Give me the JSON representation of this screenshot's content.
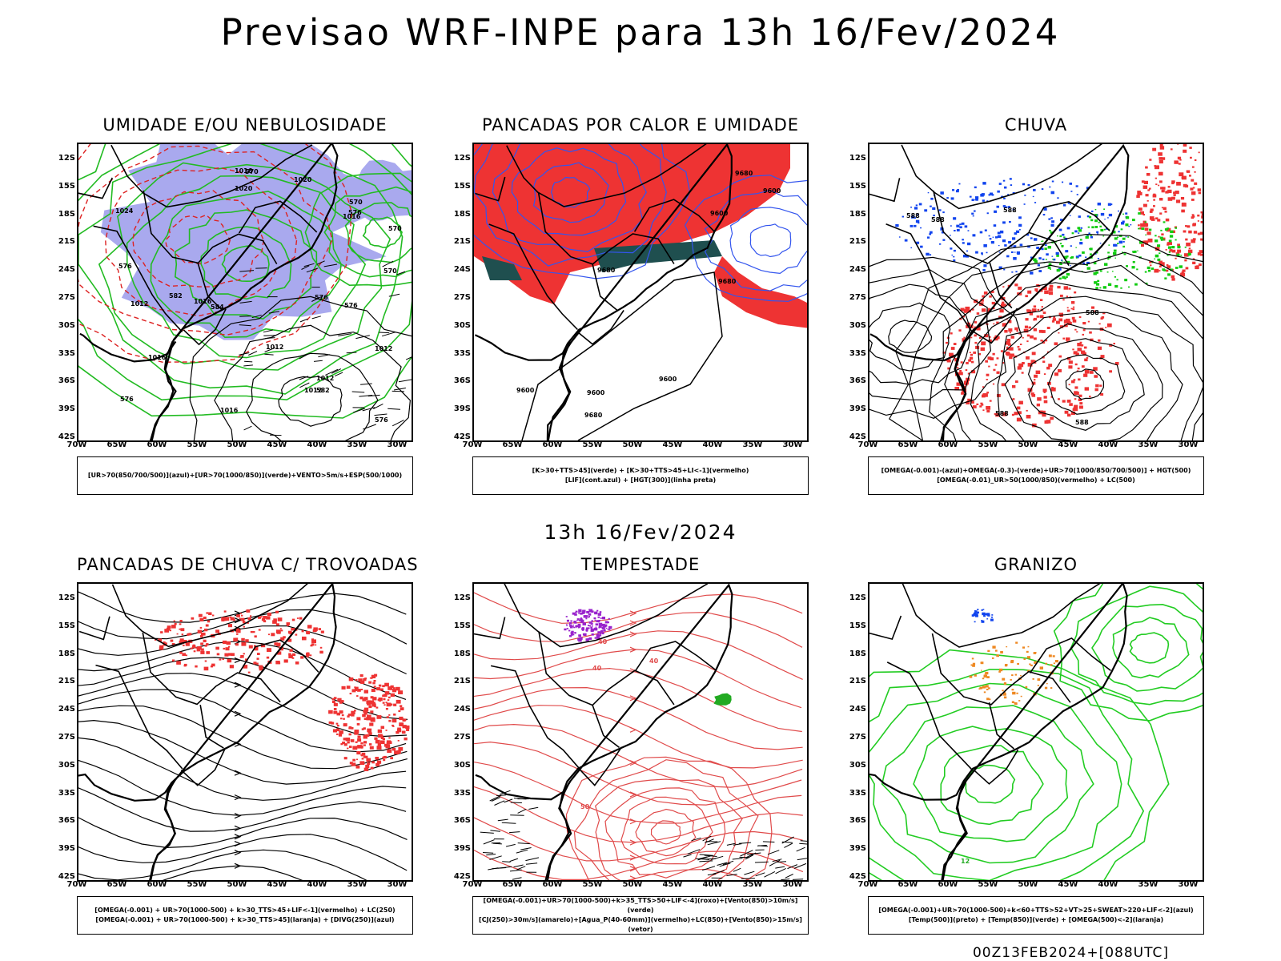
{
  "title": "Previsao WRF-INPE  para 13h 16/Fev/2024",
  "subtitle": "13h 16/Fev/2024",
  "footer": "00Z13FEB2024+[088UTC]",
  "lat_labels": [
    "12S",
    "15S",
    "18S",
    "21S",
    "24S",
    "27S",
    "30S",
    "33S",
    "36S",
    "39S",
    "42S"
  ],
  "lon_labels": [
    "70W",
    "65W",
    "60W",
    "55W",
    "50W",
    "45W",
    "40W",
    "35W",
    "30W"
  ],
  "colors": {
    "humid_mid": "#a9a9ee",
    "humid_low": "#22bb22",
    "heat_showers": "#ee3333",
    "dark_green": "#1f4f4f",
    "lifted_index": "#3355ee",
    "rain_green": "#11cc11",
    "rain_blue": "#1144ee",
    "storm_purple": "#9922cc",
    "hail_orange": "#ee8822"
  },
  "panels": [
    {
      "id": "umidade",
      "title": "UMIDADE E/OU NEBULOSIDADE",
      "legend": [
        "[UR>70(850/700/500)](azul)+[UR>70(1000/850)](verde)+VENTO>5m/s+ESP(500/1000)"
      ],
      "contour_labels": [
        "1012",
        "1012",
        "1012",
        "1012",
        "1016",
        "1016",
        "1016",
        "1016",
        "1020",
        "1020",
        "1024",
        "1012",
        "1016",
        "576",
        "576",
        "576",
        "576",
        "576",
        "576",
        "570",
        "570",
        "570",
        "570",
        "582",
        "582",
        "584"
      ]
    },
    {
      "id": "pancadas",
      "title": "PANCADAS POR CALOR E UMIDADE",
      "legend": [
        "[K>30+TTS>45](verde) + [K>30+TTS>45+LI<-1](vermelho)",
        "[LIF](cont.azul) + [HGT(300)](linha preta)"
      ],
      "contour_labels": [
        "9680",
        "9680",
        "9680",
        "9680",
        "9600",
        "9600",
        "9600",
        "9600",
        "9600"
      ]
    },
    {
      "id": "chuva",
      "title": "CHUVA",
      "legend": [
        "[OMEGA(-0.001)-(azul)+OMEGA(-0.3)-(verde)+UR>70(1000/850/700/500)] + HGT(500)",
        "[OMEGA(-0.01)_UR>50(1000/850)(vermelho) + LC(500)"
      ],
      "contour_labels": [
        "588",
        "588",
        "588",
        "588",
        "588",
        "588"
      ]
    },
    {
      "id": "trovoadas",
      "title": "PANCADAS DE CHUVA C/ TROVOADAS",
      "legend": [
        "[OMEGA(-0.001) + UR>70(1000-500) + k>30_TTS>45+LIF<-1](vermelho) + LC(250)",
        "[OMEGA(-0.001) + UR>70(1000-500) + k>30_TTS>45](laranja) + [DIVG(250)](azul)"
      ],
      "contour_labels": []
    },
    {
      "id": "tempestade",
      "title": "TEMPESTADE",
      "legend": [
        "[OMEGA(-0.001)+UR>70(1000-500)+k>35_TTS>50+LIF<-4](roxo)+[Vento(850)>10m/s](verde)",
        "[CJ(250)>30m/s](amarelo)+[Agua_P(40-60mm)](vermelho)+LC(850)+[Vento(850)>15m/s](vetor)"
      ],
      "contour_labels": [
        "40",
        "40",
        "50",
        "40"
      ]
    },
    {
      "id": "granizo",
      "title": "GRANIZO",
      "legend": [
        "[OMEGA(-0.001)+UR>70(1000-500)+k<60+TTS>52+VT>25+SWEAT>220+LIF<-2](azul)",
        "[Temp(500)](preto) + [Temp(850)](verde) + [OMEGA(500)<-2](laranja)"
      ],
      "contour_labels": [
        "12"
      ]
    }
  ]
}
